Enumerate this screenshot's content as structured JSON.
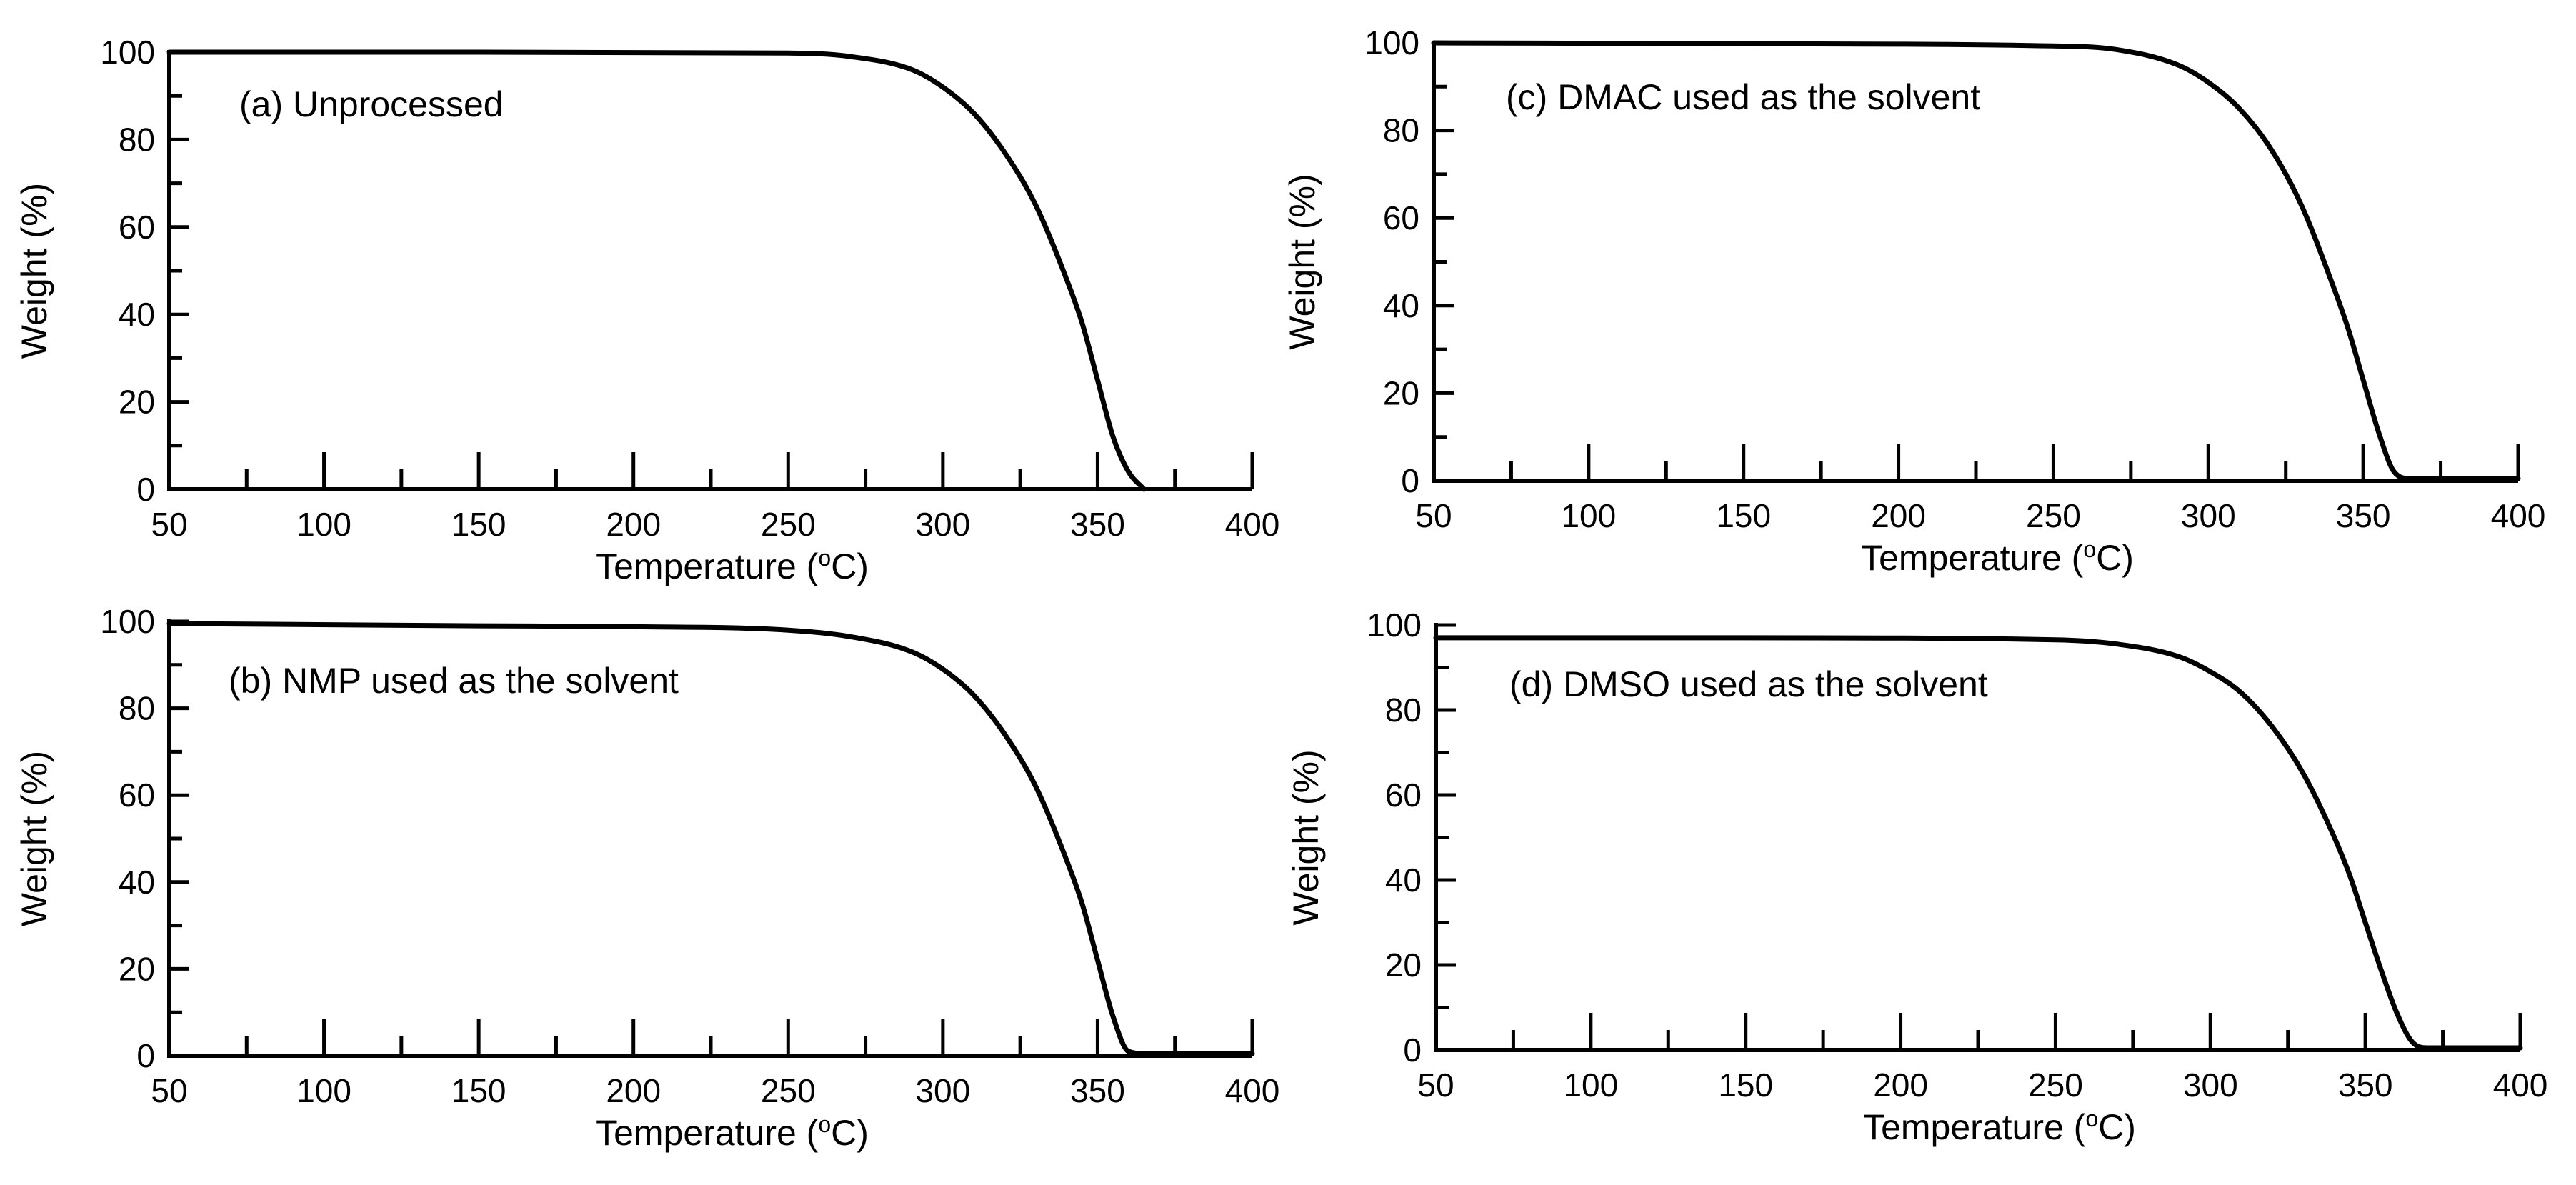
{
  "figure": {
    "panel_count": 4
  },
  "chart_data": [
    {
      "type": "line",
      "annotation": "(a) Unprocessed",
      "xlabel": "Temperature (",
      "xlabel_sup": "o",
      "xlabel_end": "C)",
      "ylabel": "Weight (%)",
      "xlim": [
        50,
        400
      ],
      "ylim": [
        0,
        100
      ],
      "xticks": [
        50,
        100,
        150,
        200,
        250,
        300,
        350,
        400
      ],
      "yticks": [
        0,
        20,
        40,
        60,
        80,
        100
      ],
      "grid": false,
      "series": [
        {
          "name": "Unprocessed",
          "x": [
            50,
            150,
            250,
            270,
            290,
            300,
            310,
            320,
            330,
            340,
            345,
            350,
            355,
            360,
            365
          ],
          "y": [
            100,
            100,
            99.8,
            99,
            96,
            92,
            86,
            77,
            65,
            48,
            38,
            25,
            12,
            4,
            0
          ]
        }
      ]
    },
    {
      "type": "line",
      "annotation": "(b) NMP used as the solvent",
      "xlabel": "Temperature (",
      "xlabel_sup": "o",
      "xlabel_end": "C)",
      "ylabel": "Weight (%)",
      "xlim": [
        50,
        400
      ],
      "ylim": [
        0,
        100
      ],
      "xticks": [
        50,
        100,
        150,
        200,
        250,
        300,
        350,
        400
      ],
      "yticks": [
        0,
        20,
        40,
        60,
        80,
        100
      ],
      "grid": false,
      "series": [
        {
          "name": "NMP",
          "x": [
            50,
            150,
            200,
            250,
            270,
            290,
            300,
            310,
            320,
            330,
            340,
            345,
            350,
            355,
            360,
            365,
            400
          ],
          "y": [
            99.5,
            99,
            98.8,
            98,
            96.5,
            93,
            89,
            83,
            74,
            62,
            45,
            35,
            22,
            9,
            1,
            0.5,
            0.5
          ]
        }
      ]
    },
    {
      "type": "line",
      "annotation": "(c) DMAC used as the solvent",
      "xlabel": "Temperature (",
      "xlabel_sup": "o",
      "xlabel_end": "C)",
      "ylabel": "Weight (%)",
      "xlim": [
        50,
        400
      ],
      "ylim": [
        0,
        100
      ],
      "xticks": [
        50,
        100,
        150,
        200,
        250,
        300,
        350,
        400
      ],
      "yticks": [
        0,
        20,
        40,
        60,
        80,
        100
      ],
      "grid": false,
      "series": [
        {
          "name": "DMAC",
          "x": [
            50,
            150,
            250,
            270,
            290,
            300,
            310,
            320,
            330,
            340,
            345,
            350,
            355,
            360,
            365,
            400
          ],
          "y": [
            100,
            99.8,
            99.3,
            98.5,
            95,
            91,
            85,
            76,
            63,
            45,
            35,
            23,
            11,
            2,
            0.5,
            0.5
          ]
        }
      ]
    },
    {
      "type": "line",
      "annotation": "(d) DMSO used as the solvent",
      "xlabel": "Temperature (",
      "xlabel_sup": "o",
      "xlabel_end": "C)",
      "ylabel": "Weight (%)",
      "xlim": [
        50,
        400
      ],
      "ylim": [
        0,
        100
      ],
      "xticks": [
        50,
        100,
        150,
        200,
        250,
        300,
        350,
        400
      ],
      "yticks": [
        0,
        20,
        40,
        60,
        80,
        100
      ],
      "grid": false,
      "series": [
        {
          "name": "DMSO",
          "x": [
            50,
            150,
            250,
            270,
            290,
            300,
            310,
            320,
            330,
            340,
            345,
            350,
            355,
            360,
            365,
            370,
            400
          ],
          "y": [
            97,
            97,
            96.5,
            95.5,
            92.5,
            89,
            84,
            76,
            65,
            50,
            41,
            30,
            19,
            9,
            2,
            0.5,
            0.5
          ]
        }
      ]
    }
  ]
}
